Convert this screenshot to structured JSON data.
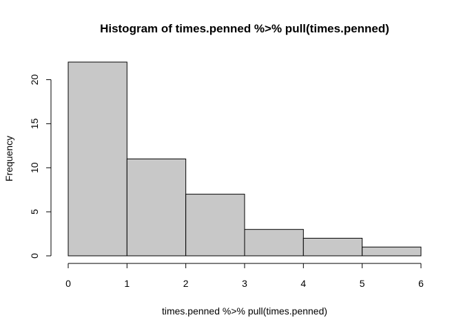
{
  "chart_data": {
    "type": "bar",
    "title": "Histogram of times.penned %>% pull(times.penned)",
    "xlabel": "times.penned %>% pull(times.penned)",
    "ylabel": "Frequency",
    "bins": [
      {
        "x0": 0,
        "x1": 1,
        "count": 22
      },
      {
        "x0": 1,
        "x1": 2,
        "count": 11
      },
      {
        "x0": 2,
        "x1": 3,
        "count": 7
      },
      {
        "x0": 3,
        "x1": 4,
        "count": 3
      },
      {
        "x0": 4,
        "x1": 5,
        "count": 2
      },
      {
        "x0": 5,
        "x1": 6,
        "count": 1
      }
    ],
    "xticks": [
      0,
      1,
      2,
      3,
      4,
      5,
      6
    ],
    "yticks": [
      0,
      5,
      10,
      15,
      20
    ],
    "xlim": [
      0,
      6
    ],
    "ylim": [
      0,
      22
    ],
    "grid": false,
    "legend": "none",
    "bar_color": "#c8c8c8"
  }
}
